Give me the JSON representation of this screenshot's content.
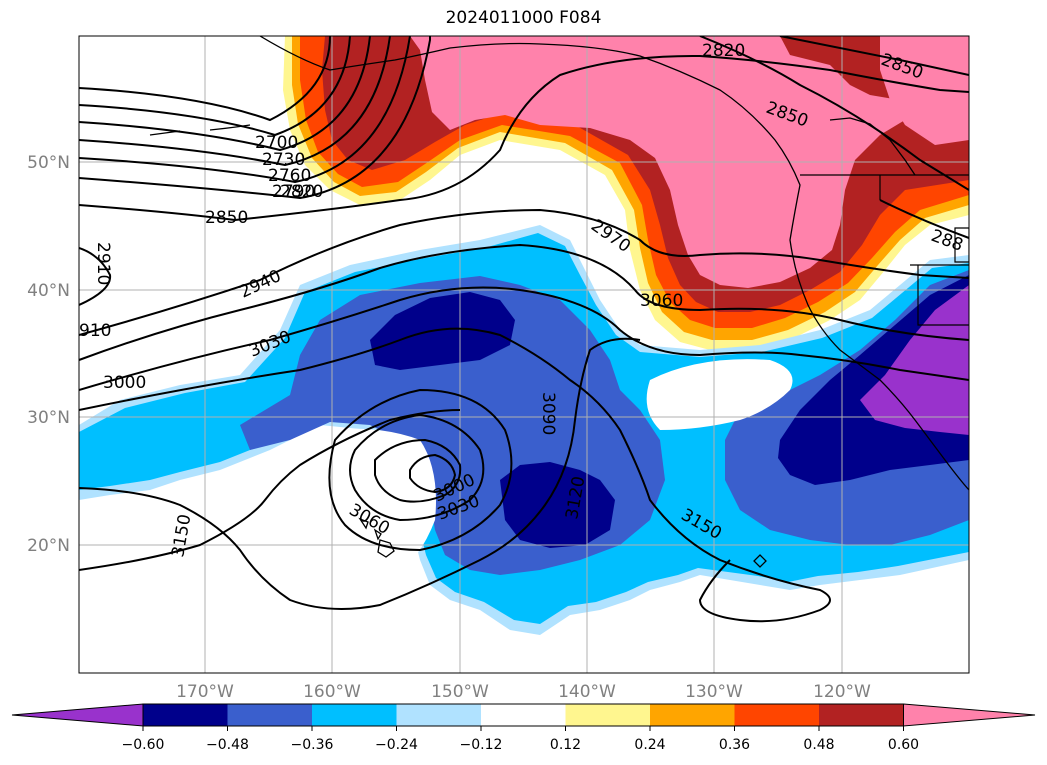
{
  "title": "2024011000 F084",
  "latitude_labels": [
    "50°N",
    "40°N",
    "30°N",
    "20°N"
  ],
  "longitude_labels": [
    "170°W",
    "160°W",
    "150°W",
    "140°W",
    "130°W",
    "120°W"
  ],
  "contour_labels": [
    "2700",
    "2730",
    "2760",
    "2790",
    "2820",
    "2850",
    "2910",
    "910",
    "2940",
    "3030",
    "3000",
    "2970",
    "3060",
    "3090",
    "3120",
    "3000",
    "3030",
    "3060",
    "3150",
    "3150",
    "2820",
    "2850",
    "2850",
    "288"
  ],
  "colorbar": {
    "colors": [
      "#9932cc",
      "#00008b",
      "#3a5fcd",
      "#00bfff",
      "#b0e2ff",
      "#ffffff",
      "#fff68f",
      "#ffa500",
      "#ff4500",
      "#b22222",
      "#ff82ab"
    ],
    "tick_labels": [
      "-0.60",
      "-0.48",
      "-0.36",
      "-0.24",
      "-0.12",
      "0.12",
      "0.24",
      "0.36",
      "0.48",
      "0.60"
    ]
  },
  "colors": {
    "positive_high": "#ff82ab",
    "positive_mid": "#b22222",
    "negative_high": "#00008b",
    "negative_mid": "#3a5fcd",
    "negative_low": "#00bfff",
    "contour": "#000000",
    "grid": "#b0b0b0"
  }
}
